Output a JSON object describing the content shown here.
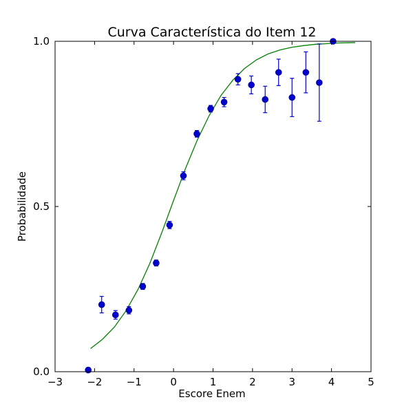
{
  "chart_data": {
    "type": "scatter",
    "title": "Curva Característica do Item 12",
    "xlabel": "Escore Enem",
    "ylabel": "Probabilidade",
    "xlim": [
      -3,
      5
    ],
    "ylim": [
      0,
      1
    ],
    "x_ticks": [
      -3,
      -2,
      -1,
      0,
      1,
      2,
      3,
      4,
      5
    ],
    "x_tick_labels": [
      "−3",
      "−2",
      "−1",
      "0",
      "1",
      "2",
      "3",
      "4",
      "5"
    ],
    "y_ticks": [
      0,
      0.5,
      1
    ],
    "y_tick_labels": [
      "0.0",
      "0.5",
      "1.0"
    ],
    "grid": false,
    "colors": {
      "points": "#0000cc",
      "curve": "#008000"
    },
    "points": [
      {
        "x": -2.16,
        "y": 0.005,
        "err": 0.007
      },
      {
        "x": -1.82,
        "y": 0.203,
        "err": 0.025
      },
      {
        "x": -1.47,
        "y": 0.172,
        "err": 0.013
      },
      {
        "x": -1.13,
        "y": 0.186,
        "err": 0.011
      },
      {
        "x": -0.78,
        "y": 0.258,
        "err": 0.009
      },
      {
        "x": -0.44,
        "y": 0.329,
        "err": 0.009
      },
      {
        "x": -0.1,
        "y": 0.444,
        "err": 0.011
      },
      {
        "x": 0.25,
        "y": 0.593,
        "err": 0.012
      },
      {
        "x": 0.59,
        "y": 0.72,
        "err": 0.01
      },
      {
        "x": 0.94,
        "y": 0.796,
        "err": 0.01
      },
      {
        "x": 1.28,
        "y": 0.816,
        "err": 0.014
      },
      {
        "x": 1.63,
        "y": 0.885,
        "err": 0.017
      },
      {
        "x": 1.97,
        "y": 0.868,
        "err": 0.027
      },
      {
        "x": 2.32,
        "y": 0.824,
        "err": 0.04
      },
      {
        "x": 2.66,
        "y": 0.906,
        "err": 0.04
      },
      {
        "x": 3.0,
        "y": 0.83,
        "err": 0.058
      },
      {
        "x": 3.35,
        "y": 0.906,
        "err": 0.062
      },
      {
        "x": 3.69,
        "y": 0.875,
        "err": 0.117
      },
      {
        "x": 4.04,
        "y": 1.0,
        "err": 0.005
      }
    ],
    "curve": {
      "label": "",
      "x": [
        -2.1,
        -1.8,
        -1.5,
        -1.2,
        -0.9,
        -0.6,
        -0.3,
        0.0,
        0.3,
        0.6,
        0.9,
        1.2,
        1.5,
        1.8,
        2.1,
        2.4,
        2.7,
        3.0,
        3.3,
        3.6,
        3.9,
        4.2,
        4.6
      ],
      "y": [
        0.07,
        0.098,
        0.135,
        0.185,
        0.249,
        0.328,
        0.42,
        0.518,
        0.614,
        0.701,
        0.775,
        0.836,
        0.882,
        0.918,
        0.944,
        0.962,
        0.974,
        0.982,
        0.987,
        0.991,
        0.993,
        0.995,
        0.996
      ]
    }
  }
}
